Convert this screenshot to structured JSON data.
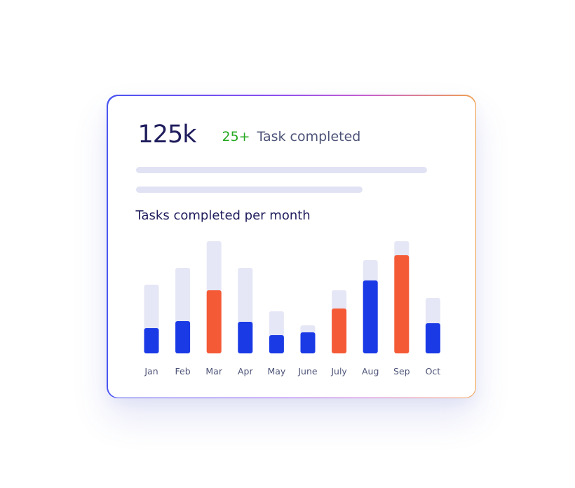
{
  "summary": {
    "total": "125k",
    "delta": "25+",
    "delta_label": "Task completed"
  },
  "colors": {
    "primary_bar": "#1a3ae6",
    "highlight_bar": "#f55a36",
    "track": "#e5e7f6",
    "delta_green": "#24a81f"
  },
  "chart_data": {
    "type": "bar",
    "title": "Tasks completed per month",
    "categories": [
      "Jan",
      "Feb",
      "Mar",
      "Apr",
      "May",
      "June",
      "July",
      "Aug",
      "Sep",
      "Oct"
    ],
    "series": [
      {
        "values": [
          36,
          46,
          90,
          45,
          26,
          30,
          64,
          104,
          140,
          43
        ]
      }
    ],
    "capacity": [
      98,
      122,
      160,
      122,
      60,
      40,
      90,
      133,
      160,
      79
    ],
    "highlighted": [
      "Mar",
      "July",
      "Sep"
    ],
    "ylim": [
      0,
      160
    ],
    "grid": false
  }
}
